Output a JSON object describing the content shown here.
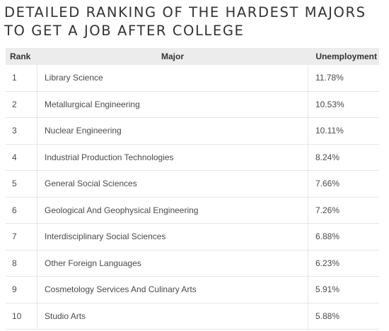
{
  "title_line1": "DETAILED RANKING OF THE HARDEST MAJORS",
  "title_line2": "TO GET A JOB AFTER COLLEGE",
  "chart_data": {
    "type": "table",
    "columns": [
      "Rank",
      "Major",
      "Unemployment"
    ],
    "rows": [
      [
        "1",
        "Library Science",
        "11.78%"
      ],
      [
        "2",
        "Metallurgical Engineering",
        "10.53%"
      ],
      [
        "3",
        "Nuclear Engineering",
        "10.11%"
      ],
      [
        "4",
        "Industrial Production Technologies",
        "8.24%"
      ],
      [
        "5",
        "General Social Sciences",
        "7.66%"
      ],
      [
        "6",
        "Geological And Geophysical Engineering",
        "7.26%"
      ],
      [
        "7",
        "Interdisciplinary Social Sciences",
        "6.88%"
      ],
      [
        "8",
        "Other Foreign Languages",
        "6.23%"
      ],
      [
        "9",
        "Cosmetology Services And Culinary Arts",
        "5.91%"
      ],
      [
        "10",
        "Studio Arts",
        "5.88%"
      ]
    ]
  }
}
